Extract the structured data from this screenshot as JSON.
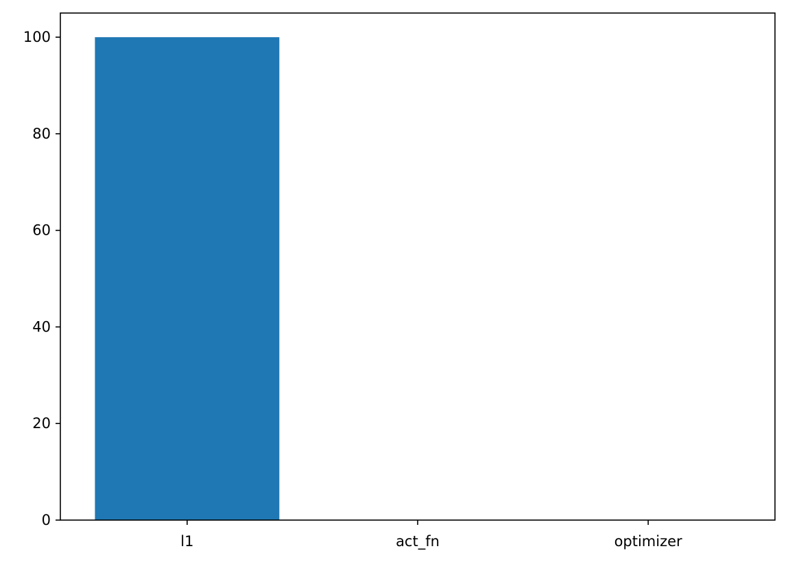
{
  "chart_data": {
    "type": "bar",
    "categories": [
      "l1",
      "act_fn",
      "optimizer"
    ],
    "values": [
      100,
      0,
      0
    ],
    "title": "",
    "xlabel": "",
    "ylabel": "",
    "ylim": [
      0,
      105
    ],
    "yticks": [
      0,
      20,
      40,
      60,
      80,
      100
    ],
    "grid": false,
    "legend": "none",
    "bar_color": "#1f77b4"
  }
}
